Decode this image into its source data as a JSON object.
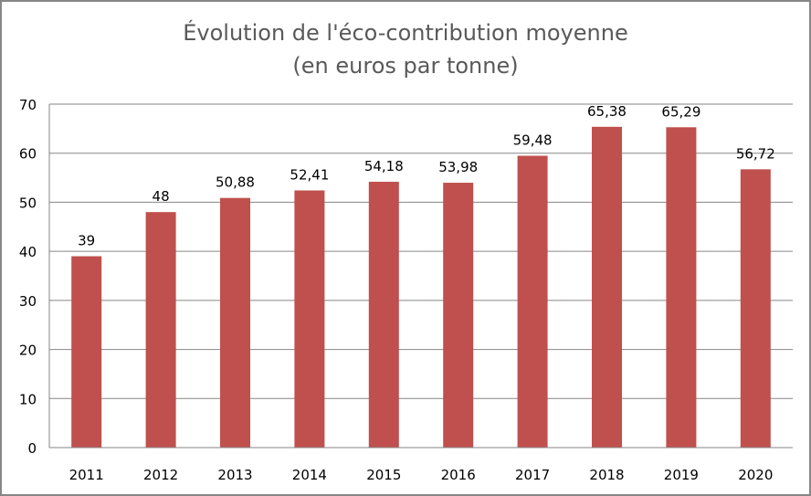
{
  "chart_data": {
    "type": "bar",
    "title": "Évolution de l'éco-contribution moyenne",
    "subtitle": "(en euros par tonne)",
    "categories": [
      "2011",
      "2012",
      "2013",
      "2014",
      "2015",
      "2016",
      "2017",
      "2018",
      "2019",
      "2020"
    ],
    "values": [
      39,
      48,
      50.88,
      52.41,
      54.18,
      53.98,
      59.48,
      65.38,
      65.29,
      56.72
    ],
    "data_labels": [
      "39",
      "48",
      "50,88",
      "52,41",
      "54,18",
      "53,98",
      "59,48",
      "65,38",
      "65,29",
      "56,72"
    ],
    "yticks": [
      0,
      10,
      20,
      30,
      40,
      50,
      60,
      70
    ],
    "ylim": [
      0,
      70
    ],
    "xlabel": "",
    "ylabel": "",
    "grid": true,
    "legend": "none",
    "colors": {
      "bar": "#C0504D",
      "grid": "#868686",
      "title": "#595959"
    }
  }
}
